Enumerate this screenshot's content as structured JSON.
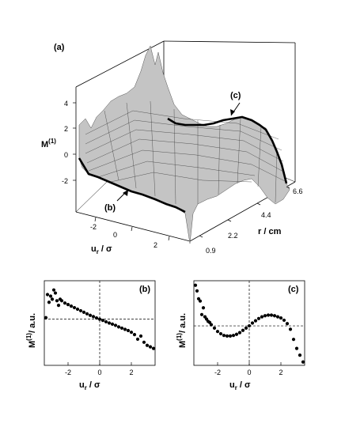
{
  "panel_a": {
    "label": "(a)",
    "zlabel_main": "M",
    "zlabel_sup": "(1)",
    "ulabel_main": "u",
    "ulabel_sub": "r",
    "ulabel_tail": " / σ",
    "rlabel": "r / cm",
    "z_ticks": [
      "4",
      "2",
      "0",
      "-2"
    ],
    "u_ticks": [
      "-2",
      "0",
      "2"
    ],
    "r_ticks": [
      "0.9",
      "2.2",
      "4.4",
      "6.6"
    ],
    "annot_b": "(b)",
    "annot_c": "(c)"
  },
  "panel_b": {
    "label": "(b)",
    "ylabel_main": "M",
    "ylabel_sup": "(1)",
    "ylabel_tail": "/ a.u.",
    "xlabel_main": "u",
    "xlabel_sub": "r",
    "xlabel_tail": " / σ",
    "x_ticks": [
      "-2",
      "0",
      "2"
    ]
  },
  "panel_c": {
    "label": "(c)",
    "ylabel_main": "M",
    "ylabel_sup": "(1)",
    "ylabel_tail": "/ a.u.",
    "xlabel_main": "u",
    "xlabel_sub": "r",
    "xlabel_tail": " / σ",
    "x_ticks": [
      "-2",
      "0",
      "2"
    ]
  },
  "chart_data": [
    {
      "type": "surface",
      "panel": "(a)",
      "x_axis": "u_r / σ",
      "y_axis": "r / cm",
      "z_axis": "M(1)",
      "x_range": [
        -3.5,
        3.5
      ],
      "y_range": [
        0.9,
        6.6
      ],
      "z_range": [
        -4,
        5
      ],
      "x_ticks": [
        -2,
        0,
        2
      ],
      "y_ticks": [
        0.9,
        2.2,
        4.4,
        6.6
      ],
      "z_ticks": [
        -2,
        0,
        2,
        4
      ],
      "highlighted_slices": [
        {
          "label": "(b)",
          "r": 0.9
        },
        {
          "label": "(c)",
          "r": 6.6
        }
      ]
    },
    {
      "type": "scatter",
      "panel": "(b)",
      "x": [
        -3.4,
        -3.3,
        -3.2,
        -3.1,
        -3.0,
        -2.9,
        -2.8,
        -2.7,
        -2.6,
        -2.5,
        -2.4,
        -2.2,
        -2.0,
        -1.8,
        -1.6,
        -1.4,
        -1.2,
        -1.0,
        -0.8,
        -0.6,
        -0.4,
        -0.2,
        0.0,
        0.2,
        0.4,
        0.6,
        0.8,
        1.0,
        1.2,
        1.4,
        1.6,
        1.8,
        2.0,
        2.2,
        2.4,
        2.6,
        2.8,
        3.0,
        3.2,
        3.4
      ],
      "y": [
        0.1,
        1.6,
        1.1,
        1.5,
        1.3,
        1.9,
        1.7,
        1.2,
        0.9,
        1.3,
        1.2,
        1.05,
        0.95,
        0.85,
        0.75,
        0.65,
        0.55,
        0.45,
        0.35,
        0.25,
        0.17,
        0.08,
        0.0,
        -0.08,
        -0.17,
        -0.25,
        -0.32,
        -0.4,
        -0.5,
        -0.58,
        -0.66,
        -0.74,
        -0.85,
        -1.0,
        -1.3,
        -1.1,
        -1.5,
        -1.7,
        -1.8,
        -1.9
      ],
      "xlim": [
        -3.5,
        3.5
      ],
      "ylim": [
        -3,
        2.5
      ],
      "dashed_reference": {
        "x": 0,
        "y": 0
      }
    },
    {
      "type": "scatter",
      "panel": "(c)",
      "x": [
        -3.4,
        -3.3,
        -3.2,
        -3.1,
        -3.0,
        -2.9,
        -2.8,
        -2.7,
        -2.6,
        -2.5,
        -2.4,
        -2.2,
        -2.0,
        -1.8,
        -1.6,
        -1.4,
        -1.2,
        -1.0,
        -0.8,
        -0.6,
        -0.4,
        -0.2,
        0.0,
        0.2,
        0.4,
        0.6,
        0.8,
        1.0,
        1.2,
        1.4,
        1.6,
        1.8,
        2.0,
        2.2,
        2.4,
        2.6,
        2.8,
        3.0,
        3.2,
        3.4
      ],
      "y": [
        3.6,
        3.1,
        2.4,
        2.2,
        1.0,
        1.6,
        0.8,
        0.6,
        0.4,
        0.3,
        0.1,
        -0.2,
        -0.5,
        -0.7,
        -0.85,
        -0.9,
        -0.9,
        -0.85,
        -0.75,
        -0.6,
        -0.4,
        -0.2,
        0.0,
        0.25,
        0.45,
        0.65,
        0.8,
        0.9,
        0.95,
        0.95,
        0.9,
        0.8,
        0.7,
        0.5,
        0.2,
        -0.3,
        -1.2,
        -2.0,
        -2.6,
        -3.2
      ],
      "xlim": [
        -3.5,
        3.5
      ],
      "ylim": [
        -3.5,
        4
      ],
      "dashed_reference": {
        "x": 0,
        "y": 0
      }
    }
  ]
}
